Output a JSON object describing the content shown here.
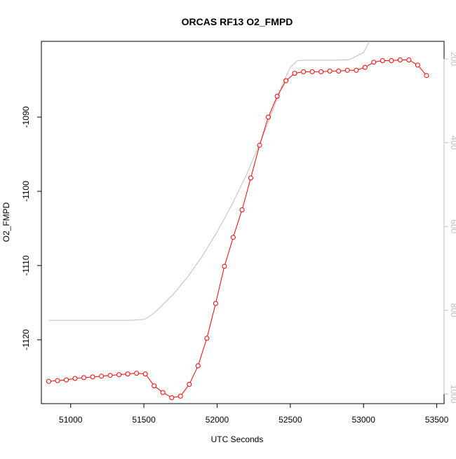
{
  "chart_data": {
    "type": "line",
    "title": "ORCAS RF13 O2_FMPD",
    "xlabel": "UTC Seconds",
    "ylabel": "O2_FMPD",
    "xlim": [
      50800,
      53550
    ],
    "ylim": [
      -1128.6,
      -1079.8
    ],
    "y2lim": [
      1023,
      158
    ],
    "x_ticks": [
      51000,
      51500,
      52000,
      52500,
      53000,
      53500
    ],
    "y_ticks": [
      -1120,
      -1110,
      -1100,
      -1090
    ],
    "y2_ticks": [
      200,
      400,
      600,
      800,
      1000
    ],
    "series": [
      {
        "color": "#ff0000",
        "axis": "left",
        "style": "line+circles",
        "x": [
          50850,
          50910,
          50970,
          51030,
          51090,
          51150,
          51210,
          51270,
          51330,
          51390,
          51450,
          51510,
          51570,
          51630,
          51690,
          51750,
          51810,
          51870,
          51930,
          51990,
          52050,
          52110,
          52170,
          52230,
          52290,
          52350,
          52410,
          52470,
          52530,
          52590,
          52650,
          52710,
          52770,
          52830,
          52890,
          52950,
          53010,
          53070,
          53130,
          53190,
          53250,
          53310,
          53370,
          53430
        ],
        "y": [
          -1125.6,
          -1125.5,
          -1125.4,
          -1125.2,
          -1125.1,
          -1125.0,
          -1124.9,
          -1124.8,
          -1124.7,
          -1124.6,
          -1124.5,
          -1124.6,
          -1126.2,
          -1127.1,
          -1127.8,
          -1127.6,
          -1126.0,
          -1123.5,
          -1119.8,
          -1115.1,
          -1110.1,
          -1106.2,
          -1102.5,
          -1098.2,
          -1093.8,
          -1090.0,
          -1087.2,
          -1085.1,
          -1084.1,
          -1083.9,
          -1083.9,
          -1083.9,
          -1083.8,
          -1083.8,
          -1083.7,
          -1083.7,
          -1083.3,
          -1082.6,
          -1082.4,
          -1082.4,
          -1082.3,
          -1082.3,
          -1083.0,
          -1084.4
        ]
      },
      {
        "color": "#bebebe",
        "axis": "right",
        "style": "line",
        "x": [
          50850,
          51000,
          51200,
          51400,
          51500,
          51550,
          51600,
          51700,
          51800,
          51900,
          52000,
          52100,
          52200,
          52300,
          52400,
          52450,
          52500,
          52550,
          52600,
          52700,
          52800,
          52900,
          53000,
          53030,
          53060
        ],
        "y": [
          824,
          824,
          824,
          824,
          822,
          812,
          797,
          762,
          720,
          670,
          613,
          549,
          477,
          395,
          304,
          258,
          220,
          204,
          203,
          203,
          203,
          202,
          185,
          165,
          140
        ]
      }
    ]
  }
}
